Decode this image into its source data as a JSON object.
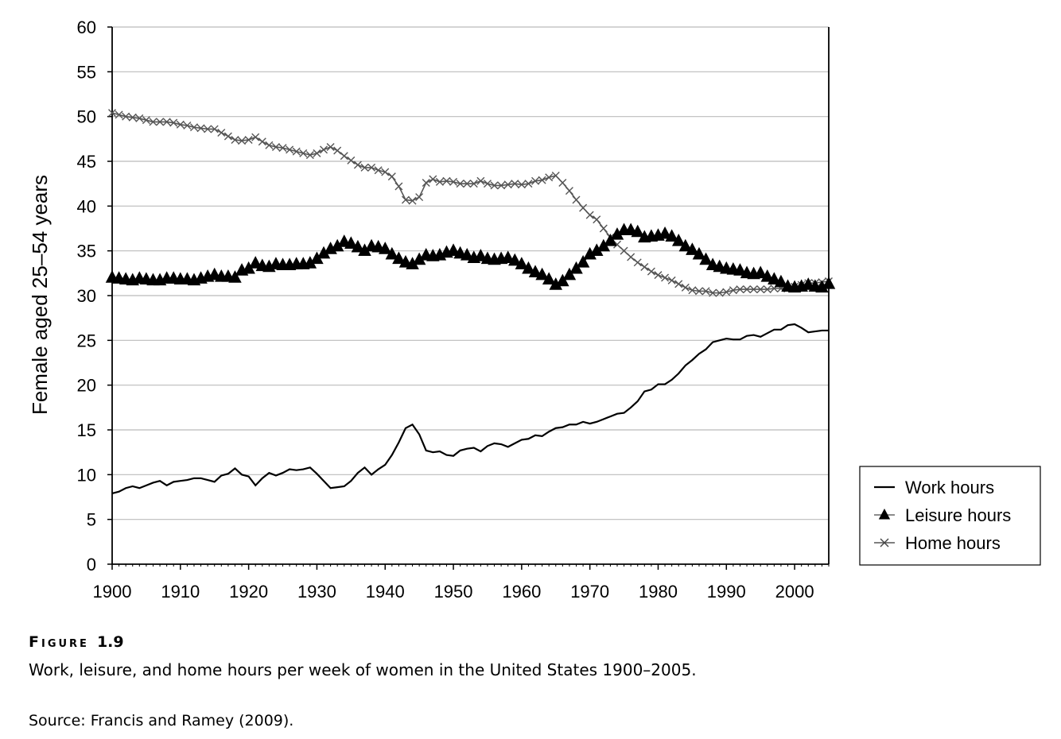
{
  "figure": {
    "label": "Figure",
    "number": "1.9",
    "caption": "Work, leisure, and home hours per week of women in the United States 1900–2005.",
    "source": "Source: Francis and Ramey (2009)."
  },
  "chart_data": {
    "type": "line",
    "title": "",
    "xlabel": "",
    "ylabel": "Female aged 25–54 years",
    "xlim": [
      1900,
      2005
    ],
    "ylim": [
      0,
      60
    ],
    "x_ticks": [
      "1900",
      "1910",
      "1920",
      "1930",
      "1940",
      "1950",
      "1960",
      "1970",
      "1980",
      "1990",
      "2000"
    ],
    "y_ticks": [
      "0",
      "5",
      "10",
      "15",
      "20",
      "25",
      "30",
      "35",
      "40",
      "45",
      "50",
      "55",
      "60"
    ],
    "grid": "horizontal",
    "legend": "bottom-right, outside plot",
    "colors": {
      "work": "#000000",
      "leisure": "#000000",
      "home": "#555555",
      "grid": "#bbbbbb"
    },
    "x": [
      1900,
      1901,
      1902,
      1903,
      1904,
      1905,
      1906,
      1907,
      1908,
      1909,
      1910,
      1911,
      1912,
      1913,
      1914,
      1915,
      1916,
      1917,
      1918,
      1919,
      1920,
      1921,
      1922,
      1923,
      1924,
      1925,
      1926,
      1927,
      1928,
      1929,
      1930,
      1931,
      1932,
      1933,
      1934,
      1935,
      1936,
      1937,
      1938,
      1939,
      1940,
      1941,
      1942,
      1943,
      1944,
      1945,
      1946,
      1947,
      1948,
      1949,
      1950,
      1951,
      1952,
      1953,
      1954,
      1955,
      1956,
      1957,
      1958,
      1959,
      1960,
      1961,
      1962,
      1963,
      1964,
      1965,
      1966,
      1967,
      1968,
      1969,
      1970,
      1971,
      1972,
      1973,
      1974,
      1975,
      1976,
      1977,
      1978,
      1979,
      1980,
      1981,
      1982,
      1983,
      1984,
      1985,
      1986,
      1987,
      1988,
      1989,
      1990,
      1991,
      1992,
      1993,
      1994,
      1995,
      1996,
      1997,
      1998,
      1999,
      2000,
      2001,
      2002,
      2003,
      2004,
      2005
    ],
    "series": [
      {
        "name": "Work hours",
        "marker": "none",
        "values": [
          7.9,
          8.1,
          8.5,
          8.7,
          8.5,
          8.8,
          9.1,
          9.3,
          8.8,
          9.2,
          9.3,
          9.4,
          9.6,
          9.6,
          9.4,
          9.2,
          9.9,
          10.1,
          10.7,
          10.0,
          9.8,
          8.8,
          9.6,
          10.2,
          9.9,
          10.2,
          10.6,
          10.5,
          10.6,
          10.8,
          10.1,
          9.3,
          8.5,
          8.6,
          8.7,
          9.3,
          10.2,
          10.8,
          10.0,
          10.6,
          11.1,
          12.2,
          13.6,
          15.2,
          15.6,
          14.5,
          12.7,
          12.5,
          12.6,
          12.2,
          12.1,
          12.7,
          12.9,
          13.0,
          12.6,
          13.2,
          13.5,
          13.4,
          13.1,
          13.5,
          13.9,
          14.0,
          14.4,
          14.3,
          14.8,
          15.2,
          15.3,
          15.6,
          15.6,
          15.9,
          15.7,
          15.9,
          16.2,
          16.5,
          16.8,
          16.9,
          17.5,
          18.2,
          19.3,
          19.5,
          20.1,
          20.1,
          20.6,
          21.3,
          22.2,
          22.8,
          23.5,
          24.0,
          24.8,
          25.0,
          25.2,
          25.1,
          25.1,
          25.5,
          25.6,
          25.4,
          25.8,
          26.2,
          26.2,
          26.7,
          26.8,
          26.4,
          25.9,
          26.0,
          26.1,
          26.1
        ]
      },
      {
        "name": "Leisure hours",
        "marker": "triangle",
        "values": [
          32.0,
          31.9,
          31.8,
          31.7,
          31.9,
          31.8,
          31.7,
          31.7,
          31.9,
          31.9,
          31.8,
          31.8,
          31.7,
          31.9,
          32.1,
          32.3,
          32.1,
          32.1,
          32.0,
          32.8,
          33.0,
          33.6,
          33.3,
          33.2,
          33.5,
          33.4,
          33.4,
          33.5,
          33.5,
          33.6,
          34.1,
          34.7,
          35.2,
          35.5,
          36.0,
          35.8,
          35.4,
          35.0,
          35.5,
          35.4,
          35.2,
          34.6,
          34.1,
          33.7,
          33.5,
          34.0,
          34.5,
          34.4,
          34.5,
          34.8,
          35.0,
          34.7,
          34.5,
          34.2,
          34.4,
          34.1,
          34.0,
          34.1,
          34.2,
          33.9,
          33.5,
          33.0,
          32.6,
          32.3,
          31.8,
          31.2,
          31.6,
          32.3,
          33.0,
          33.7,
          34.6,
          35.0,
          35.5,
          36.1,
          36.8,
          37.3,
          37.3,
          37.1,
          36.5,
          36.6,
          36.7,
          36.9,
          36.6,
          36.1,
          35.5,
          35.1,
          34.6,
          34.0,
          33.4,
          33.2,
          33.0,
          32.9,
          32.8,
          32.5,
          32.4,
          32.5,
          32.1,
          31.8,
          31.5,
          31.0,
          30.9,
          31.0,
          31.2,
          31.0,
          30.9,
          31.3
        ]
      },
      {
        "name": "Home hours",
        "marker": "x",
        "values": [
          50.4,
          50.2,
          50.0,
          49.9,
          49.8,
          49.6,
          49.4,
          49.4,
          49.4,
          49.3,
          49.1,
          49.0,
          48.8,
          48.7,
          48.6,
          48.6,
          48.2,
          47.8,
          47.4,
          47.3,
          47.4,
          47.7,
          47.2,
          46.8,
          46.6,
          46.5,
          46.3,
          46.1,
          45.9,
          45.7,
          45.9,
          46.3,
          46.6,
          46.2,
          45.6,
          45.1,
          44.6,
          44.3,
          44.3,
          44.0,
          43.8,
          43.3,
          42.2,
          40.7,
          40.6,
          41.0,
          42.6,
          43.0,
          42.7,
          42.8,
          42.7,
          42.5,
          42.5,
          42.5,
          42.8,
          42.5,
          42.3,
          42.3,
          42.4,
          42.5,
          42.4,
          42.5,
          42.8,
          42.9,
          43.2,
          43.4,
          42.6,
          41.7,
          40.7,
          39.8,
          39.0,
          38.5,
          37.5,
          36.5,
          35.7,
          35.0,
          34.3,
          33.7,
          33.2,
          32.7,
          32.3,
          32.0,
          31.7,
          31.3,
          30.9,
          30.6,
          30.5,
          30.5,
          30.3,
          30.3,
          30.4,
          30.6,
          30.7,
          30.7,
          30.7,
          30.7,
          30.7,
          30.8,
          30.8,
          30.8,
          31.0,
          31.2,
          31.4,
          31.4,
          31.5,
          31.6
        ]
      }
    ]
  }
}
